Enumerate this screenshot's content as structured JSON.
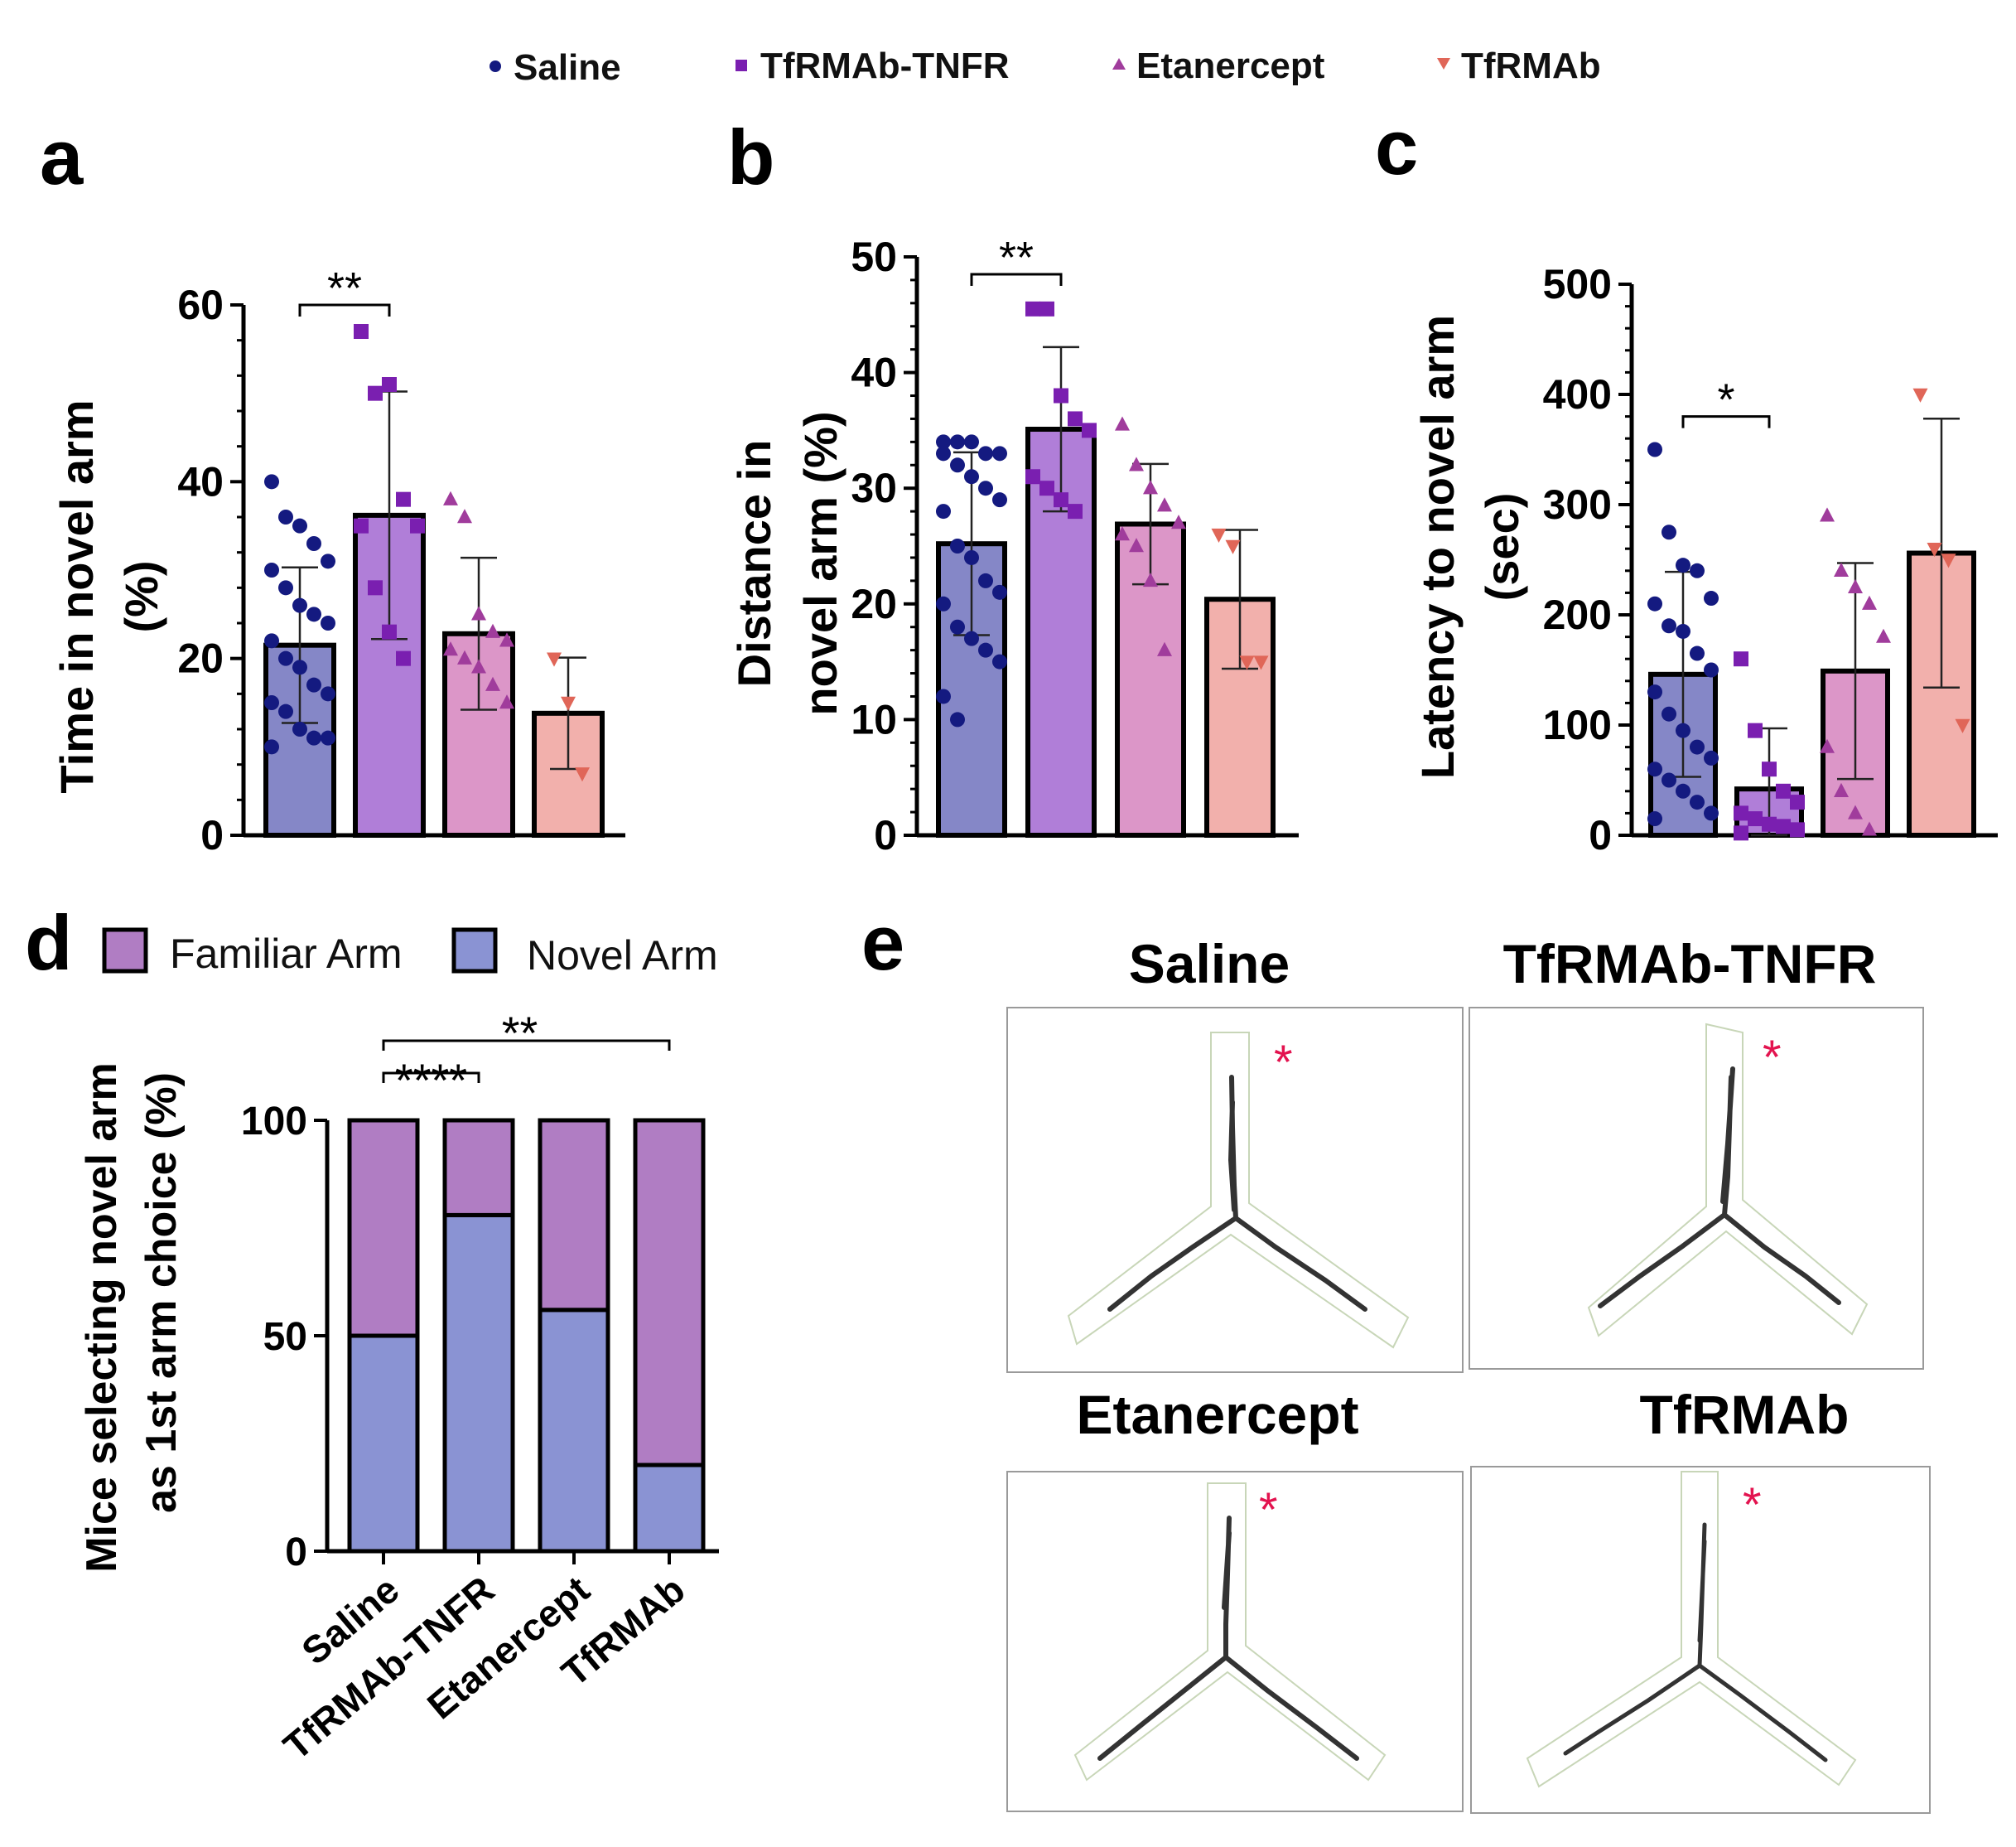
{
  "legend": {
    "items": [
      {
        "label": "Saline",
        "marker": "circle",
        "color": "#141a80"
      },
      {
        "label": "TfRMAb-TNFR",
        "marker": "square",
        "color": "#7a1fb0"
      },
      {
        "label": "Etanercept",
        "marker": "triangle",
        "color": "#a03c9c"
      },
      {
        "label": "TfRMAb",
        "marker": "triangle-down",
        "color": "#e06658"
      }
    ]
  },
  "colors": {
    "bar_fills": [
      "#8587c7",
      "#b07ed8",
      "#dc96c8",
      "#f2b0ac"
    ],
    "markers": [
      "#141a80",
      "#7a1fb0",
      "#a03c9c",
      "#e06658"
    ],
    "familiar_arm": "#b07dc3",
    "novel_arm": "#8a93d3",
    "star": "#e3134f"
  },
  "chart_data": [
    {
      "id": "a",
      "panel_label": "a",
      "type": "bar",
      "ylabel_lines": [
        "Time in novel arm",
        "(%)"
      ],
      "ylim": [
        0,
        60
      ],
      "yticks": [
        0,
        20,
        40,
        60
      ],
      "categories": [
        "Saline",
        "TfRMAb-TNFR",
        "Etanercept",
        "TfRMAb"
      ],
      "values": [
        21.5,
        36.2,
        22.8,
        13.8
      ],
      "errors": [
        8.8,
        14.0,
        8.6,
        6.3
      ],
      "points": [
        [
          40,
          36,
          35,
          33,
          31,
          30,
          28,
          26,
          25,
          24,
          22,
          20,
          19,
          17,
          16,
          15,
          14,
          12,
          11,
          11,
          10
        ],
        [
          57,
          50,
          51,
          38,
          35,
          35,
          28,
          23,
          20
        ],
        [
          38,
          36,
          25,
          23,
          22,
          21,
          20,
          19,
          17,
          15
        ],
        [
          20,
          15,
          7
        ]
      ],
      "significance": [
        {
          "from": 0,
          "to": 1,
          "label": "**"
        }
      ]
    },
    {
      "id": "b",
      "panel_label": "b",
      "type": "bar",
      "ylabel_lines": [
        "Distance in",
        "novel arm (%)"
      ],
      "ylim": [
        0,
        50
      ],
      "yticks": [
        0,
        10,
        20,
        30,
        40,
        50
      ],
      "categories": [
        "Saline",
        "TfRMAb-TNFR",
        "Etanercept",
        "TfRMAb"
      ],
      "values": [
        25.2,
        35.1,
        26.9,
        20.4
      ],
      "errors": [
        7.9,
        7.1,
        5.2,
        6.0
      ],
      "points": [
        [
          34,
          34,
          34,
          33,
          33,
          33,
          32,
          31,
          30,
          29,
          28,
          25,
          24,
          22,
          21,
          20,
          18,
          17,
          16,
          15,
          12,
          10
        ],
        [
          45.5,
          45.5,
          38,
          36,
          35,
          31,
          30,
          29,
          28
        ],
        [
          35.5,
          32,
          30,
          28.5,
          27,
          26,
          25,
          22,
          16
        ],
        [
          26,
          25,
          15,
          15
        ]
      ],
      "significance": [
        {
          "from": 0,
          "to": 1,
          "label": "**"
        }
      ]
    },
    {
      "id": "c",
      "panel_label": "c",
      "type": "bar",
      "ylabel_lines": [
        "Latency to novel arm",
        "(sec)"
      ],
      "ylim": [
        0,
        500
      ],
      "yticks": [
        0,
        100,
        200,
        300,
        400,
        500
      ],
      "categories": [
        "Saline",
        "TfRMAb-TNFR",
        "Etanercept",
        "TfRMAb"
      ],
      "values": [
        146,
        42,
        149,
        256
      ],
      "errors": [
        93,
        55,
        98,
        122
      ],
      "points": [
        [
          350,
          275,
          245,
          240,
          215,
          210,
          190,
          185,
          165,
          150,
          130,
          110,
          95,
          80,
          70,
          60,
          50,
          40,
          30,
          20,
          15
        ],
        [
          160,
          95,
          60,
          40,
          30,
          20,
          15,
          10,
          8,
          5,
          2
        ],
        [
          290,
          240,
          225,
          210,
          180,
          80,
          40,
          20,
          5
        ],
        [
          400,
          260,
          250,
          100
        ]
      ],
      "significance": [
        {
          "from": 0,
          "to": 1,
          "label": "*"
        }
      ]
    },
    {
      "id": "d",
      "panel_label": "d",
      "type": "bar",
      "stacked": true,
      "ylabel_lines": [
        "Mice selecting novel arm",
        "as 1st arm choice (%)"
      ],
      "ylim": [
        0,
        100
      ],
      "yticks": [
        0,
        50,
        100
      ],
      "categories": [
        "Saline",
        "TfRMAb-TNFR",
        "Etanercept",
        "TfRMAb"
      ],
      "series": [
        {
          "name": "Novel Arm",
          "values": [
            50,
            78,
            56,
            20
          ]
        },
        {
          "name": "Familiar Arm",
          "values": [
            50,
            22,
            44,
            80
          ]
        }
      ],
      "legend_labels": [
        "Familiar Arm",
        "Novel Arm"
      ],
      "significance": [
        {
          "from": 0,
          "to": 1,
          "label": "****"
        },
        {
          "from": 0,
          "to": 3,
          "label": "**"
        }
      ]
    }
  ],
  "panel_e": {
    "label": "e",
    "tracks": [
      {
        "title": "Saline",
        "star": "*"
      },
      {
        "title": "TfRMAb-TNFR",
        "star": "*"
      },
      {
        "title": "Etanercept",
        "star": "*"
      },
      {
        "title": "TfRMAb",
        "star": "*"
      }
    ]
  }
}
